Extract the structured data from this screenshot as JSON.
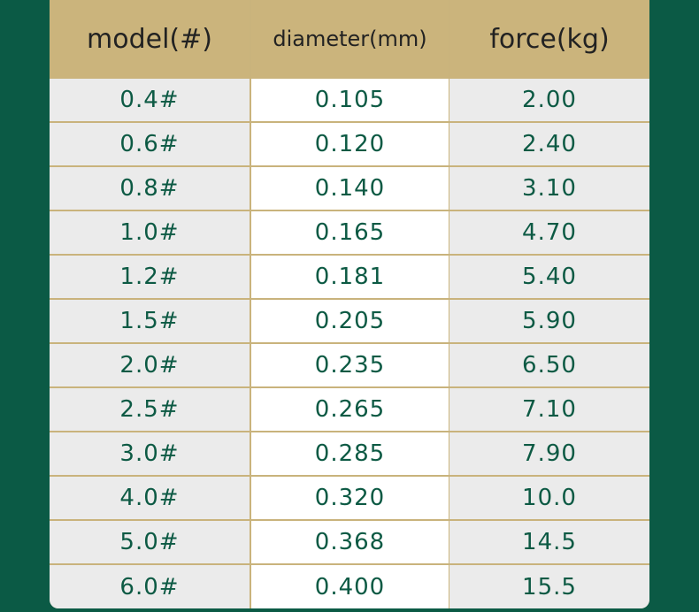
{
  "table": {
    "header": [
      "model(#)",
      "diameter(mm)",
      "force(kg)"
    ],
    "rows": [
      [
        "0.4#",
        "0.105",
        "2.00"
      ],
      [
        "0.6#",
        "0.120",
        "2.40"
      ],
      [
        "0.8#",
        "0.140",
        "3.10"
      ],
      [
        "1.0#",
        "0.165",
        "4.70"
      ],
      [
        "1.2#",
        "0.181",
        "5.40"
      ],
      [
        "1.5#",
        "0.205",
        "5.90"
      ],
      [
        "2.0#",
        "0.235",
        "6.50"
      ],
      [
        "2.5#",
        "0.265",
        "7.10"
      ],
      [
        "3.0#",
        "0.285",
        "7.90"
      ],
      [
        "4.0#",
        "0.320",
        "10.0"
      ],
      [
        "5.0#",
        "0.368",
        "14.5"
      ],
      [
        "6.0#",
        "0.400",
        "15.5"
      ]
    ]
  }
}
